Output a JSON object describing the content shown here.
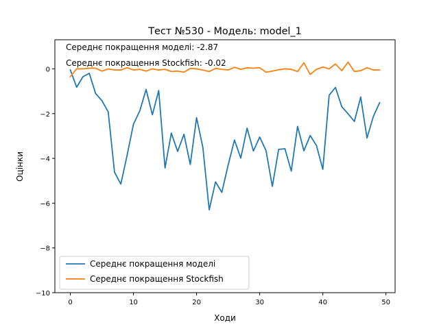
{
  "chart_data": {
    "type": "line",
    "title": "Тест №530 - Модель: model_1",
    "xlabel": "Ходи",
    "ylabel": "Оцінки",
    "xlim": [
      -2.45,
      51.45
    ],
    "ylim": [
      -10,
      1.3
    ],
    "xticks": [
      0,
      10,
      20,
      30,
      40,
      50
    ],
    "yticks": [
      -10,
      -8,
      -6,
      -4,
      -2,
      0
    ],
    "grid": false,
    "legend_position": "lower-left",
    "annotations": [
      "Середнє покращення моделі: -2.87",
      "Середнє покращення Stockfish: -0.02"
    ],
    "x": [
      0,
      1,
      2,
      3,
      4,
      5,
      6,
      7,
      8,
      9,
      10,
      11,
      12,
      13,
      14,
      15,
      16,
      17,
      18,
      19,
      20,
      21,
      22,
      23,
      24,
      25,
      26,
      27,
      28,
      29,
      30,
      31,
      32,
      33,
      34,
      35,
      36,
      37,
      38,
      39,
      40,
      41,
      42,
      43,
      44,
      45,
      46,
      47,
      48,
      49
    ],
    "series": [
      {
        "name": "Середнє покращення моделі",
        "color": "#1f77b4",
        "values": [
          -0.05,
          -0.82,
          -0.35,
          -0.2,
          -1.1,
          -1.42,
          -1.92,
          -4.62,
          -5.15,
          -3.85,
          -2.47,
          -1.88,
          -0.92,
          -2.05,
          -0.97,
          -4.43,
          -2.87,
          -3.69,
          -2.92,
          -4.27,
          -2.18,
          -3.52,
          -6.3,
          -5.05,
          -5.52,
          -4.3,
          -3.18,
          -3.99,
          -2.65,
          -3.67,
          -3.05,
          -3.65,
          -5.25,
          -3.6,
          -3.57,
          -4.57,
          -2.57,
          -3.66,
          -2.98,
          -3.43,
          -4.49,
          -1.18,
          -0.83,
          -1.69,
          -2.01,
          -2.35,
          -1.26,
          -3.09,
          -2.13,
          -1.51
        ]
      },
      {
        "name": "Середнє покращення Stockfish",
        "color": "#ff7f0e",
        "values": [
          -0.35,
          0.0,
          0.0,
          0.03,
          0.03,
          -0.1,
          0.0,
          -0.05,
          -0.05,
          0.05,
          -0.05,
          -0.02,
          -0.1,
          0.0,
          -0.05,
          -0.02,
          -0.12,
          -0.1,
          -0.15,
          0.02,
          0.0,
          -0.05,
          -0.12,
          0.02,
          -0.02,
          -0.05,
          0.07,
          -0.02,
          0.05,
          0.03,
          0.05,
          -0.15,
          -0.1,
          -0.04,
          0.0,
          -0.02,
          -0.12,
          0.27,
          -0.25,
          -0.02,
          0.08,
          0.0,
          0.22,
          -0.08,
          0.3,
          -0.12,
          -0.08,
          0.05,
          -0.05,
          -0.05
        ]
      }
    ]
  }
}
